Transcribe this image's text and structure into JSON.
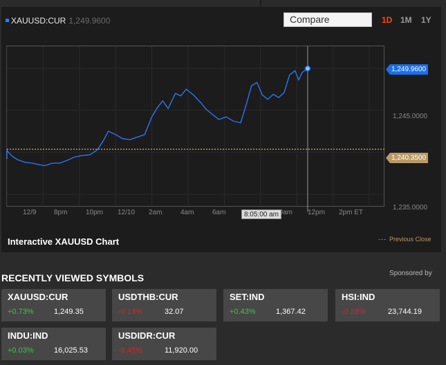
{
  "header": {
    "symbol": "XAUUSD:CUR",
    "last_price": "1,249.9600",
    "compare_placeholder": "Compare",
    "ranges": [
      {
        "label": "1D",
        "active": true
      },
      {
        "label": "1M",
        "active": false
      },
      {
        "label": "1Y",
        "active": false
      }
    ]
  },
  "chart": {
    "y_ticks": [
      "1,245.0000",
      "1,235.0000"
    ],
    "x_ticks": [
      "12/9",
      "8pm",
      "10pm",
      "12/10",
      "2am",
      "4am",
      "6am",
      "8:05:00 am",
      "10am",
      "12pm",
      "2pm ET"
    ],
    "crosshair_time": "8:05:00 am",
    "last_tag": "1,249.9600",
    "prev_close_tag": "1,240.3500",
    "title": "Interactive XAUUSD Chart",
    "legend_prev_close": "Previous Close",
    "colors": {
      "line": "#2f7bff",
      "prev_close": "#bb9966",
      "accent": "#ff4a00"
    }
  },
  "chart_data": {
    "type": "line",
    "title": "Interactive XAUUSD Chart",
    "y_unit": "USD",
    "ylim": [
      1233.6,
      1252.6
    ],
    "xlim_hours_from_1800": [
      0,
      20.8
    ],
    "series": [
      {
        "name": "XAUUSD:CUR",
        "points": [
          [
            -0.9,
            1240.3
          ],
          [
            -0.5,
            1240.1
          ],
          [
            -0.2,
            1239.2
          ],
          [
            0.0,
            1240.2
          ],
          [
            0.3,
            1239.5
          ],
          [
            0.6,
            1239.1
          ],
          [
            1.0,
            1238.8
          ],
          [
            1.4,
            1238.7
          ],
          [
            1.8,
            1238.5
          ],
          [
            2.1,
            1238.4
          ],
          [
            2.5,
            1238.7
          ],
          [
            2.9,
            1238.7
          ],
          [
            3.3,
            1239.0
          ],
          [
            3.7,
            1239.4
          ],
          [
            4.1,
            1239.6
          ],
          [
            4.6,
            1239.7
          ],
          [
            5.0,
            1240.3
          ],
          [
            5.3,
            1241.3
          ],
          [
            5.6,
            1242.5
          ],
          [
            6.0,
            1242.1
          ],
          [
            6.4,
            1241.6
          ],
          [
            6.8,
            1241.5
          ],
          [
            7.2,
            1241.8
          ],
          [
            7.6,
            1242.1
          ],
          [
            8.0,
            1244.2
          ],
          [
            8.3,
            1245.3
          ],
          [
            8.6,
            1246.1
          ],
          [
            8.9,
            1245.2
          ],
          [
            9.3,
            1247.0
          ],
          [
            9.6,
            1246.7
          ],
          [
            9.9,
            1247.5
          ],
          [
            10.3,
            1246.8
          ],
          [
            10.7,
            1245.9
          ],
          [
            11.0,
            1245.1
          ],
          [
            11.4,
            1244.4
          ],
          [
            11.7,
            1243.9
          ],
          [
            12.1,
            1244.2
          ],
          [
            12.5,
            1243.7
          ],
          [
            12.9,
            1243.5
          ],
          [
            13.2,
            1245.6
          ],
          [
            13.5,
            1247.9
          ],
          [
            13.8,
            1248.3
          ],
          [
            14.1,
            1246.8
          ],
          [
            14.4,
            1246.3
          ],
          [
            14.7,
            1246.9
          ],
          [
            15.0,
            1246.5
          ],
          [
            15.3,
            1247.1
          ],
          [
            15.6,
            1249.2
          ],
          [
            15.9,
            1249.7
          ],
          [
            16.1,
            1248.6
          ],
          [
            16.3,
            1249.5
          ],
          [
            16.6,
            1249.96
          ]
        ]
      }
    ],
    "previous_close": 1240.35,
    "last_value": 1249.96,
    "grid": true
  },
  "recent": {
    "title": "RECENTLY VIEWED SYMBOLS",
    "sponsored": "Sponsored by",
    "items": [
      {
        "name": "XAUUSD:CUR",
        "change": "+0.73%",
        "dir": "up",
        "price": "1,249.35"
      },
      {
        "name": "USDTHB:CUR",
        "change": "-0.13%",
        "dir": "dn",
        "price": "32.07"
      },
      {
        "name": "SET:IND",
        "change": "+0.43%",
        "dir": "up",
        "price": "1,367.42"
      },
      {
        "name": "HSI:IND",
        "change": "-0.28%",
        "dir": "dn",
        "price": "23,744.19"
      },
      {
        "name": "INDU:IND",
        "change": "+0.03%",
        "dir": "up",
        "price": "16,025.53"
      },
      {
        "name": "USDIDR:CUR",
        "change": "-0.45%",
        "dir": "dn",
        "price": "11,920.00"
      }
    ]
  }
}
